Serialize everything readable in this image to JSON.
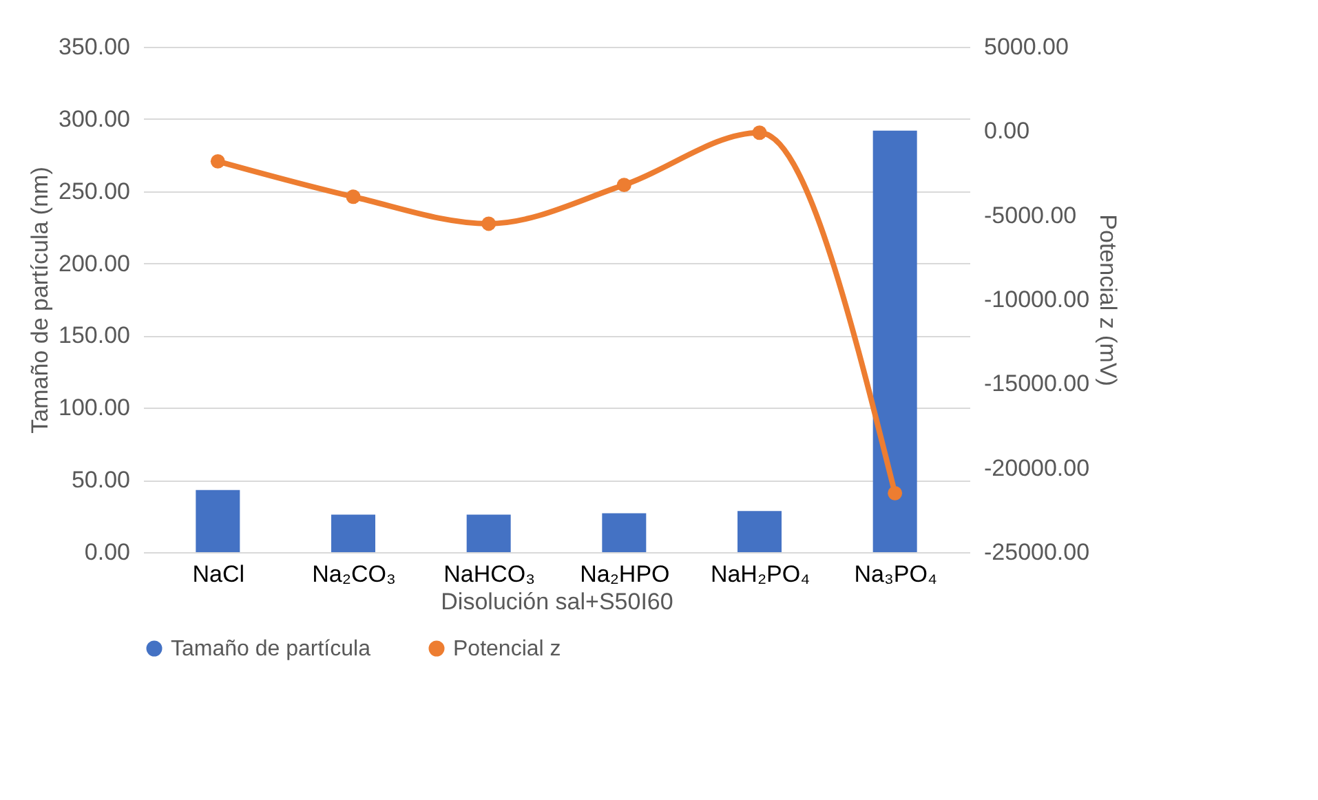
{
  "chart_data": {
    "type": "bar",
    "xlabel": "Disolución sal+S50I60",
    "ylabel": "Tamaño de partícula (nm)",
    "y2label": "Potencial z (mV)",
    "categories": [
      "NaCl",
      "Na₂CO₃",
      "NaHCO₃",
      "Na₂HPO",
      "NaH₂PO₄",
      "Na₃PO₄"
    ],
    "series": [
      {
        "name": "Tamaño de partícula",
        "color": "#4472c4",
        "values": [
          43,
          26,
          26,
          27,
          28.5,
          292
        ]
      },
      {
        "name": "Potencial z",
        "type": "line",
        "axis": "y2",
        "color": "#ed7d31",
        "marker": "circle",
        "values": [
          -1800,
          -3900,
          -5500,
          -3200,
          -100,
          -21500
        ]
      }
    ],
    "ylim": [
      0,
      350
    ],
    "yticks": [
      {
        "value": 0,
        "label": "0.00"
      },
      {
        "value": 50,
        "label": "50.00"
      },
      {
        "value": 100,
        "label": "100.00"
      },
      {
        "value": 150,
        "label": "150.00"
      },
      {
        "value": 200,
        "label": "200.00"
      },
      {
        "value": 250,
        "label": "250.00"
      },
      {
        "value": 300,
        "label": "300.00"
      },
      {
        "value": 350,
        "label": "350.00"
      }
    ],
    "y2lim": [
      -25000,
      5000
    ],
    "y2ticks": [
      {
        "value": -25000,
        "label": "-25000.00"
      },
      {
        "value": -20000,
        "label": "-20000.00"
      },
      {
        "value": -15000,
        "label": "-15000.00"
      },
      {
        "value": -10000,
        "label": "-10000.00"
      },
      {
        "value": -5000,
        "label": "-5000.00"
      },
      {
        "value": 0,
        "label": "0.00"
      },
      {
        "value": 5000,
        "label": "5000.00"
      }
    ],
    "grid": "y",
    "legend": "bottom"
  }
}
